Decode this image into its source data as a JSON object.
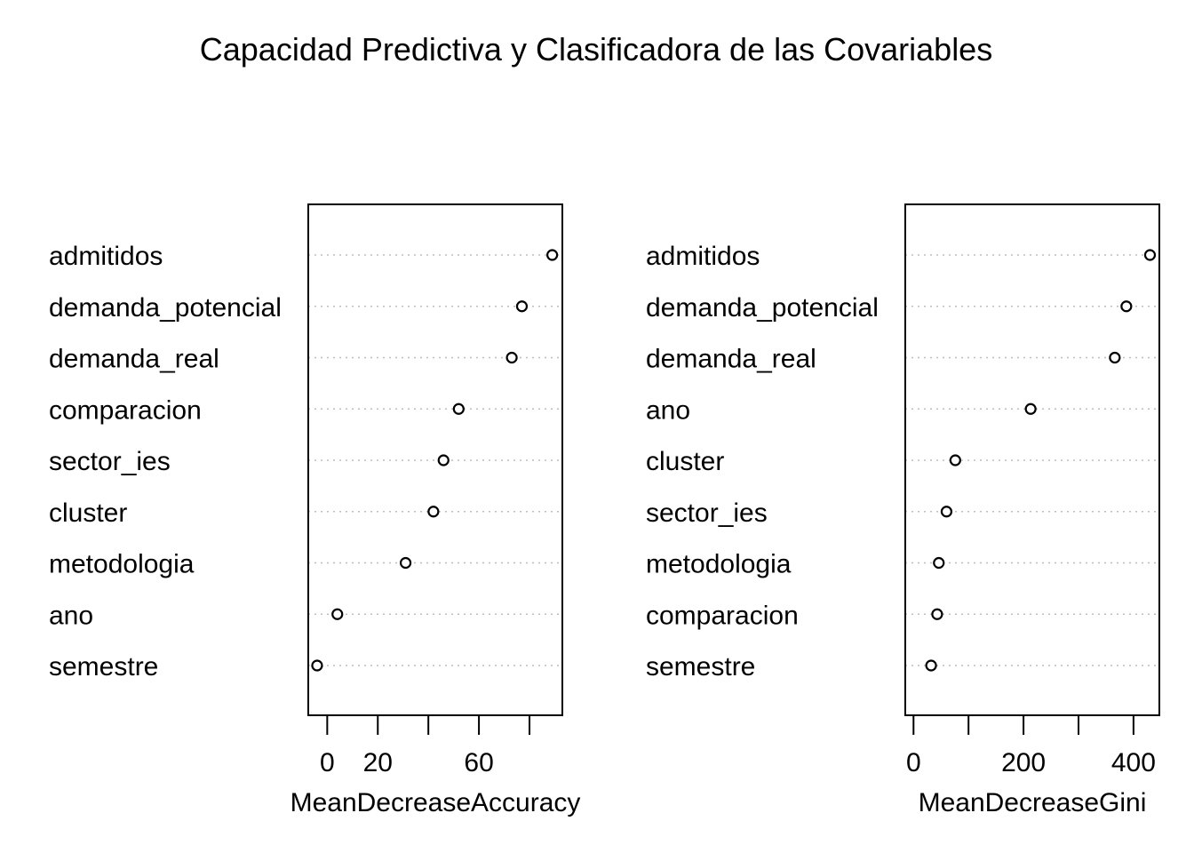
{
  "chart_data": {
    "title": "Capacidad Predictiva y Clasificadora de las Covariables",
    "panels": [
      {
        "type": "scatter",
        "xlabel": "MeanDecreaseAccuracy",
        "xlim": [
          -7.5,
          93
        ],
        "xticks": [
          0,
          20,
          40,
          60,
          80
        ],
        "xtick_labels": [
          "0",
          "20",
          "",
          "60",
          ""
        ],
        "categories": [
          "admitidos",
          "demanda_potencial",
          "demanda_real",
          "comparacion",
          "sector_ies",
          "cluster",
          "metodologia",
          "ano",
          "semestre"
        ],
        "values": [
          89,
          77,
          73,
          52,
          46,
          42,
          31,
          4,
          -4
        ],
        "grid": "dotted horizontal"
      },
      {
        "type": "scatter",
        "xlabel": "MeanDecreaseGini",
        "xlim": [
          -15,
          447
        ],
        "xticks": [
          0,
          100,
          200,
          300,
          400
        ],
        "xtick_labels": [
          "0",
          "",
          "200",
          "",
          "400"
        ],
        "categories": [
          "admitidos",
          "demanda_potencial",
          "demanda_real",
          "ano",
          "cluster",
          "sector_ies",
          "metodologia",
          "comparacion",
          "semestre"
        ],
        "values": [
          430,
          387,
          366,
          213,
          76,
          60,
          46,
          43,
          32
        ],
        "grid": "dotted horizontal"
      }
    ]
  }
}
